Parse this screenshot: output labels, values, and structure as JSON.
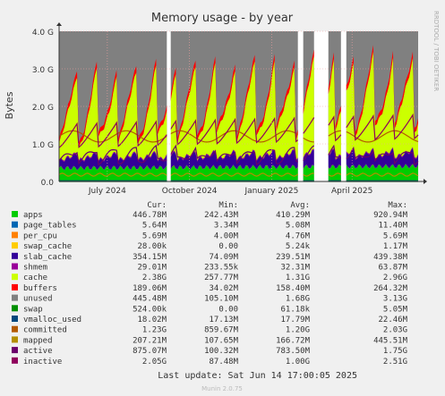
{
  "chart_data": {
    "type": "area",
    "title": "Memory usage - by year",
    "ylabel": "Bytes",
    "side_label": "RRDTOOL / TOBI OETIKER",
    "ylim": [
      0,
      4.0
    ],
    "y_unit": "G",
    "y_ticks": [
      "0.0",
      "1.0 G",
      "2.0 G",
      "3.0 G",
      "4.0 G"
    ],
    "x_ticks": [
      "July 2024",
      "October 2024",
      "January 2025",
      "April 2025"
    ],
    "x_range": [
      "2024-05-08",
      "2025-06-14"
    ],
    "gaps": [
      [
        "2024-09-08",
        "2024-09-09"
      ],
      [
        "2025-02-01",
        "2025-02-03"
      ],
      [
        "2025-02-20",
        "2025-03-04"
      ],
      [
        "2025-03-22",
        "2025-03-23"
      ]
    ],
    "legend_headers": [
      "Cur:",
      "Min:",
      "Avg:",
      "Max:"
    ],
    "series": [
      {
        "name": "apps",
        "color": "#00cc00",
        "cur": "446.78M",
        "min": "242.43M",
        "avg": "410.29M",
        "max": "920.94M"
      },
      {
        "name": "page_tables",
        "color": "#0066b3",
        "cur": "5.64M",
        "min": "3.34M",
        "avg": "5.08M",
        "max": "11.40M"
      },
      {
        "name": "per_cpu",
        "color": "#ff8000",
        "cur": "5.69M",
        "min": "4.00M",
        "avg": "4.76M",
        "max": "5.69M"
      },
      {
        "name": "swap_cache",
        "color": "#ffcc00",
        "cur": "28.00k",
        "min": "0.00",
        "avg": "5.24k",
        "max": "1.17M"
      },
      {
        "name": "slab_cache",
        "color": "#330099",
        "cur": "354.15M",
        "min": "74.09M",
        "avg": "239.51M",
        "max": "439.38M"
      },
      {
        "name": "shmem",
        "color": "#990099",
        "cur": "29.01M",
        "min": "233.55k",
        "avg": "32.31M",
        "max": "63.87M"
      },
      {
        "name": "cache",
        "color": "#ccff00",
        "cur": "2.38G",
        "min": "257.77M",
        "avg": "1.31G",
        "max": "2.96G"
      },
      {
        "name": "buffers",
        "color": "#ff0000",
        "cur": "189.06M",
        "min": "34.02M",
        "avg": "158.40M",
        "max": "264.32M"
      },
      {
        "name": "unused",
        "color": "#808080",
        "cur": "445.48M",
        "min": "105.10M",
        "avg": "1.68G",
        "max": "3.13G"
      },
      {
        "name": "swap",
        "color": "#008f00",
        "cur": "524.00k",
        "min": "0.00",
        "avg": "61.18k",
        "max": "5.05M"
      },
      {
        "name": "vmalloc_used",
        "color": "#00487d",
        "cur": "18.02M",
        "min": "17.13M",
        "avg": "17.79M",
        "max": "22.46M"
      },
      {
        "name": "committed",
        "color": "#b35a00",
        "cur": "1.23G",
        "min": "859.67M",
        "avg": "1.20G",
        "max": "2.03G"
      },
      {
        "name": "mapped",
        "color": "#b38f00",
        "cur": "207.21M",
        "min": "107.65M",
        "avg": "166.72M",
        "max": "445.51M"
      },
      {
        "name": "active",
        "color": "#6b006b",
        "cur": "875.07M",
        "min": "100.32M",
        "avg": "783.50M",
        "max": "1.75G"
      },
      {
        "name": "inactive",
        "color": "#8f005c",
        "cur": "2.05G",
        "min": "87.48M",
        "avg": "1.00G",
        "max": "2.51G"
      }
    ],
    "last_update": "Last update: Sat Jun 14 17:00:05 2025",
    "footer": "Munin 2.0.75"
  }
}
